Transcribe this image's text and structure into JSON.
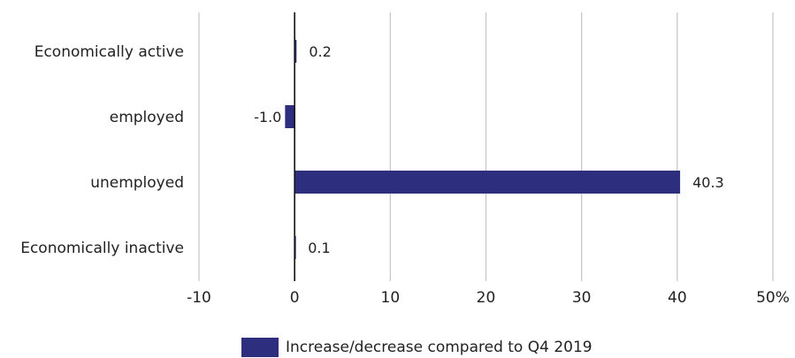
{
  "chart_data": {
    "type": "bar",
    "orientation": "horizontal",
    "categories": [
      "Economically active",
      "employed",
      "unemployed",
      "Economically inactive"
    ],
    "series": [
      {
        "name": "Increase/decrease compared to Q4 2019",
        "values": [
          0.2,
          -1.0,
          40.3,
          0.1
        ]
      }
    ],
    "value_labels": [
      "0.2",
      "-1.0",
      "40.3",
      "0.1"
    ],
    "xlim": [
      -10,
      50
    ],
    "xticks": [
      -10,
      0,
      10,
      20,
      30,
      40,
      50
    ],
    "xtick_labels": [
      "-10",
      "0",
      "10",
      "20",
      "30",
      "40",
      "50%"
    ],
    "xlabel": "",
    "ylabel": "",
    "title": "",
    "grid": "vertical",
    "legend_position": "bottom-center",
    "bar_color": "#2e2e7e",
    "grid_color": "#c8c8c8",
    "zero_line_color": "#111111"
  },
  "legend": {
    "label": "Increase/decrease compared to Q4 2019",
    "color": "#2e2e7e"
  }
}
